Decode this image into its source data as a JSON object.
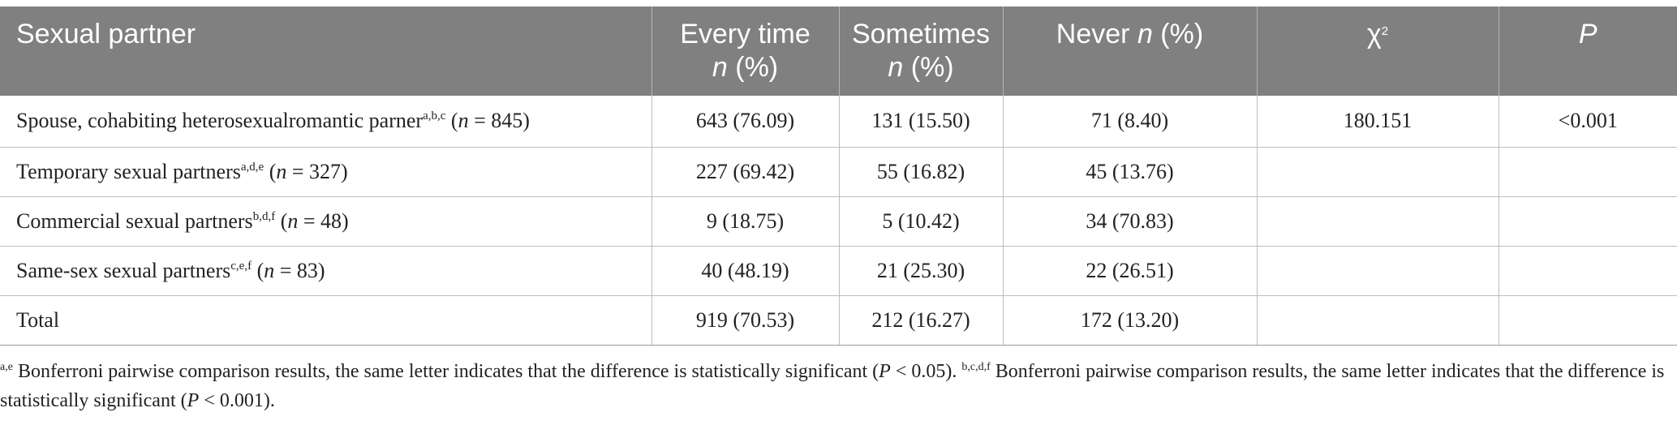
{
  "header": {
    "col0": "Sexual partner",
    "col1_line1": "Every time",
    "col1_n": "n",
    "col1_pct": " (%)",
    "col2_line1": "Sometimes",
    "col2_n": "n",
    "col2_pct": " (%)",
    "col3_text": "Never ",
    "col3_n": "n",
    "col3_pct": " (%)",
    "col4_chi": "χ",
    "col4_sup": "2",
    "col5": "P"
  },
  "rows": [
    {
      "label": "Spouse, cohabiting heterosexualromantic parner",
      "sup": "a,b,c",
      "n_open": " (",
      "n": "n",
      "n_val": " = 845)",
      "every": "643 (76.09)",
      "some": "131 (15.50)",
      "never": "71 (8.40)",
      "chi": "180.151",
      "p": "<0.001"
    },
    {
      "label": "Temporary sexual partners",
      "sup": "a,d,e",
      "n_open": " (",
      "n": "n",
      "n_val": " = 327)",
      "every": "227 (69.42)",
      "some": "55 (16.82)",
      "never": "45 (13.76)",
      "chi": "",
      "p": ""
    },
    {
      "label": "Commercial sexual partners",
      "sup": "b,d,f",
      "n_open": " (",
      "n": "n",
      "n_val": " = 48)",
      "every": "9 (18.75)",
      "some": "5 (10.42)",
      "never": "34 (70.83)",
      "chi": "",
      "p": ""
    },
    {
      "label": "Same-sex sexual partners",
      "sup": "c,e,f",
      "n_open": " (",
      "n": "n",
      "n_val": " = 83)",
      "every": "40 (48.19)",
      "some": "21 (25.30)",
      "never": "22 (26.51)",
      "chi": "",
      "p": ""
    },
    {
      "label": "Total",
      "sup": "",
      "n_open": "",
      "n": "",
      "n_val": "",
      "every": "919 (70.53)",
      "some": "212 (16.27)",
      "never": "172 (13.20)",
      "chi": "",
      "p": ""
    }
  ],
  "footnote": {
    "sup1": "a,e",
    "text1": " Bonferroni pairwise comparison results, the same letter indicates that the difference is statistically significant (",
    "p1": "P",
    "val1": " < 0.05). ",
    "sup2": "b,c,d,f",
    "text2": " Bonferroni pairwise comparison results, the same letter indicates that the difference is statistically significant (",
    "p2": "P",
    "val2": " < 0.001)."
  }
}
